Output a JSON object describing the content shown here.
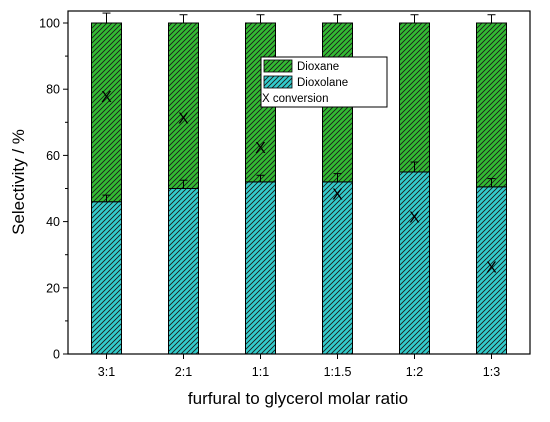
{
  "chart_data": {
    "type": "bar",
    "stacked": true,
    "xlabel": "furfural to glycerol molar ratio",
    "ylabel": "Selectivity / %",
    "ylim": [
      0,
      105
    ],
    "yticks": [
      0,
      20,
      40,
      60,
      80,
      100
    ],
    "categories": [
      "3:1",
      "2:1",
      "1:1",
      "1:1.5",
      "1:2",
      "1:3"
    ],
    "series": [
      {
        "name": "Dioxolane",
        "values": [
          46,
          50,
          52,
          52,
          55,
          50.5
        ],
        "error": [
          2,
          2.5,
          2,
          2.5,
          3,
          2.5
        ],
        "color": "#33cccc",
        "pattern": "diagonal-hatch"
      },
      {
        "name": "Dioxane",
        "values": [
          54,
          50,
          48,
          48,
          45,
          49.5
        ],
        "error": [
          3,
          2.5,
          2.5,
          2.5,
          2.5,
          2.5
        ],
        "color": "#33bb33",
        "pattern": "diagonal-hatch"
      }
    ],
    "markers": {
      "name": "conversion",
      "symbol": "X",
      "values": [
        78,
        71.5,
        62.5,
        48.5,
        41.5,
        26.5
      ]
    },
    "legend": {
      "placement": "top-center",
      "entries": [
        "Dioxane",
        "Dioxolane",
        "X conversion"
      ]
    },
    "grid": false
  }
}
